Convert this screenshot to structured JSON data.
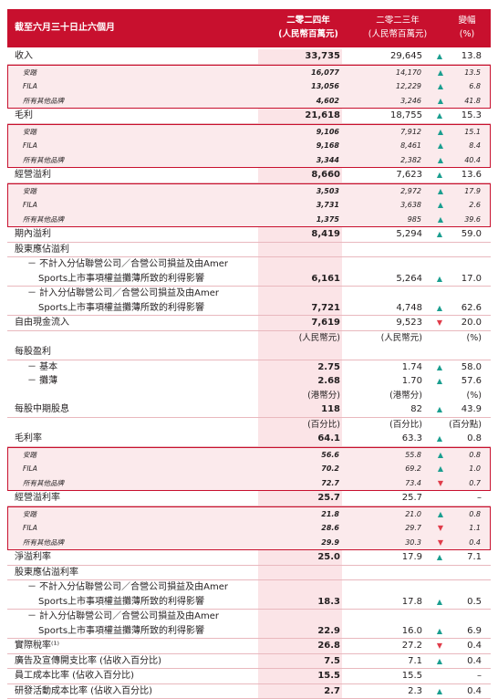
{
  "header": {
    "period": "截至六月三十日止六個月",
    "col1_line1": "二零二四年",
    "col1_line2": "(人民幣百萬元)",
    "col2_line1": "二零二三年",
    "col2_line2": "(人民幣百萬元)",
    "col3_line1": "變幅",
    "col3_line2": "(%)"
  },
  "colors": {
    "accent": "#c8102e",
    "up": "#1a9e8f",
    "down": "#e03c4a",
    "band": "#fbeaec"
  },
  "rows": [
    {
      "label": "收入",
      "v1": "33,735",
      "v2": "29,645",
      "dir": "up",
      "v3": "13.8",
      "type": "main"
    },
    {
      "label": "安踏",
      "v1": "16,077",
      "v2": "14,170",
      "dir": "up",
      "v3": "13.5",
      "type": "sub",
      "pos": "top"
    },
    {
      "label": "FILA",
      "v1": "13,056",
      "v2": "12,229",
      "dir": "up",
      "v3": "6.8",
      "type": "sub"
    },
    {
      "label": "所有其他品牌",
      "v1": "4,602",
      "v2": "3,246",
      "dir": "up",
      "v3": "41.8",
      "type": "sub",
      "pos": "bot"
    },
    {
      "label": "毛利",
      "v1": "21,618",
      "v2": "18,755",
      "dir": "up",
      "v3": "15.3",
      "type": "main"
    },
    {
      "label": "安踏",
      "v1": "9,106",
      "v2": "7,912",
      "dir": "up",
      "v3": "15.1",
      "type": "sub",
      "pos": "top"
    },
    {
      "label": "FILA",
      "v1": "9,168",
      "v2": "8,461",
      "dir": "up",
      "v3": "8.4",
      "type": "sub"
    },
    {
      "label": "所有其他品牌",
      "v1": "3,344",
      "v2": "2,382",
      "dir": "up",
      "v3": "40.4",
      "type": "sub",
      "pos": "bot"
    },
    {
      "label": "經營溢利",
      "v1": "8,660",
      "v2": "7,623",
      "dir": "up",
      "v3": "13.6",
      "type": "main"
    },
    {
      "label": "安踏",
      "v1": "3,503",
      "v2": "2,972",
      "dir": "up",
      "v3": "17.9",
      "type": "sub",
      "pos": "top"
    },
    {
      "label": "FILA",
      "v1": "3,731",
      "v2": "3,638",
      "dir": "up",
      "v3": "2.6",
      "type": "sub"
    },
    {
      "label": "所有其他品牌",
      "v1": "1,375",
      "v2": "985",
      "dir": "up",
      "v3": "39.6",
      "type": "sub",
      "pos": "bot"
    },
    {
      "label": "期內溢利",
      "v1": "8,419",
      "v2": "5,294",
      "dir": "up",
      "v3": "59.0",
      "type": "main"
    },
    {
      "label": "股東應佔溢利",
      "v1": "",
      "v2": "",
      "dir": "",
      "v3": "",
      "type": "main"
    },
    {
      "label": "－ 不計入分佔聯營公司／合營公司損益及由Amer",
      "v1": "",
      "v2": "",
      "dir": "",
      "v3": "",
      "type": "ind"
    },
    {
      "label": "Sports上市事項權益攤薄所致的利得影響",
      "v1": "6,161",
      "v2": "5,264",
      "dir": "up",
      "v3": "17.0",
      "type": "ind2"
    },
    {
      "label": "－ 計入分佔聯營公司／合營公司損益及由Amer",
      "v1": "",
      "v2": "",
      "dir": "",
      "v3": "",
      "type": "ind"
    },
    {
      "label": "Sports上市事項權益攤薄所致的利得影響",
      "v1": "7,721",
      "v2": "4,748",
      "dir": "up",
      "v3": "62.6",
      "type": "ind2"
    },
    {
      "label": "自由現金流入",
      "v1": "7,619",
      "v2": "9,523",
      "dir": "down",
      "v3": "20.0",
      "type": "main"
    },
    {
      "label": "",
      "v1": "(人民幣元)",
      "v2": "(人民幣元)",
      "dir": "",
      "v3": "(%)",
      "type": "unit"
    },
    {
      "label": "每股盈利",
      "v1": "",
      "v2": "",
      "dir": "",
      "v3": "",
      "type": "main"
    },
    {
      "label": "－ 基本",
      "v1": "2.75",
      "v2": "1.74",
      "dir": "up",
      "v3": "58.0",
      "type": "ind"
    },
    {
      "label": "－ 攤薄",
      "v1": "2.68",
      "v2": "1.70",
      "dir": "up",
      "v3": "57.6",
      "type": "ind"
    },
    {
      "label": "",
      "v1": "(港幣分)",
      "v2": "(港幣分)",
      "dir": "",
      "v3": "(%)",
      "type": "unit"
    },
    {
      "label": "每股中期股息",
      "v1": "118",
      "v2": "82",
      "dir": "up",
      "v3": "43.9",
      "type": "main"
    },
    {
      "label": "",
      "v1": "(百分比)",
      "v2": "(百分比)",
      "dir": "",
      "v3": "(百分點)",
      "type": "unit"
    },
    {
      "label": "毛利率",
      "v1": "64.1",
      "v2": "63.3",
      "dir": "up",
      "v3": "0.8",
      "type": "main"
    },
    {
      "label": "安踏",
      "v1": "56.6",
      "v2": "55.8",
      "dir": "up",
      "v3": "0.8",
      "type": "sub",
      "pos": "top"
    },
    {
      "label": "FILA",
      "v1": "70.2",
      "v2": "69.2",
      "dir": "up",
      "v3": "1.0",
      "type": "sub"
    },
    {
      "label": "所有其他品牌",
      "v1": "72.7",
      "v2": "73.4",
      "dir": "down",
      "v3": "0.7",
      "type": "sub",
      "pos": "bot"
    },
    {
      "label": "經營溢利率",
      "v1": "25.7",
      "v2": "25.7",
      "dir": "",
      "v3": "–",
      "type": "main"
    },
    {
      "label": "安踏",
      "v1": "21.8",
      "v2": "21.0",
      "dir": "up",
      "v3": "0.8",
      "type": "sub",
      "pos": "top"
    },
    {
      "label": "FILA",
      "v1": "28.6",
      "v2": "29.7",
      "dir": "down",
      "v3": "1.1",
      "type": "sub"
    },
    {
      "label": "所有其他品牌",
      "v1": "29.9",
      "v2": "30.3",
      "dir": "down",
      "v3": "0.4",
      "type": "sub",
      "pos": "bot"
    },
    {
      "label": "淨溢利率",
      "v1": "25.0",
      "v2": "17.9",
      "dir": "up",
      "v3": "7.1",
      "type": "main"
    },
    {
      "label": "股東應佔溢利率",
      "v1": "",
      "v2": "",
      "dir": "",
      "v3": "",
      "type": "main"
    },
    {
      "label": "－ 不計入分佔聯營公司／合營公司損益及由Amer",
      "v1": "",
      "v2": "",
      "dir": "",
      "v3": "",
      "type": "ind"
    },
    {
      "label": "Sports上市事項權益攤薄所致的利得影響",
      "v1": "18.3",
      "v2": "17.8",
      "dir": "up",
      "v3": "0.5",
      "type": "ind2"
    },
    {
      "label": "－ 計入分佔聯營公司／合營公司損益及由Amer",
      "v1": "",
      "v2": "",
      "dir": "",
      "v3": "",
      "type": "ind"
    },
    {
      "label": "Sports上市事項權益攤薄所致的利得影響",
      "v1": "22.9",
      "v2": "16.0",
      "dir": "up",
      "v3": "6.9",
      "type": "ind2"
    },
    {
      "label": "實際稅率⁽¹⁾",
      "v1": "26.8",
      "v2": "27.2",
      "dir": "down",
      "v3": "0.4",
      "type": "main"
    },
    {
      "label": "廣告及宣傳開支比率 (佔收入百分比)",
      "v1": "7.5",
      "v2": "7.1",
      "dir": "up",
      "v3": "0.4",
      "type": "main"
    },
    {
      "label": "員工成本比率 (佔收入百分比)",
      "v1": "15.5",
      "v2": "15.5",
      "dir": "",
      "v3": "–",
      "type": "main"
    },
    {
      "label": "研發活動成本比率 (佔收入百分比)",
      "v1": "2.7",
      "v2": "2.3",
      "dir": "up",
      "v3": "0.4",
      "type": "main"
    }
  ]
}
